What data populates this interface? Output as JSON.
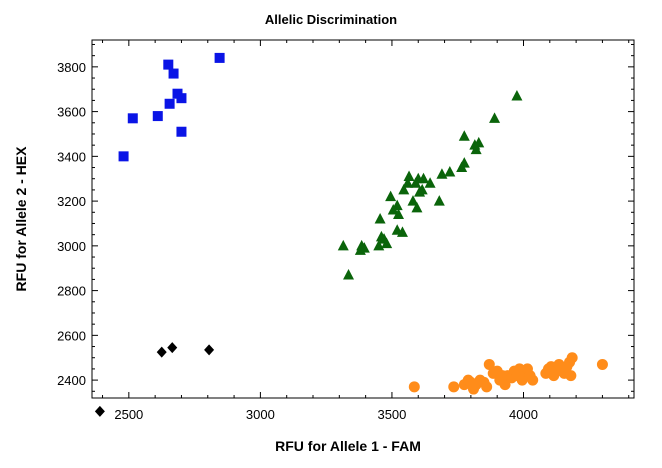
{
  "chart_data": {
    "type": "scatter",
    "title": "Allelic Discrimination",
    "xlabel": "RFU for Allele 1 - FAM",
    "ylabel": "RFU for Allele 2 - HEX",
    "xlim": [
      2360,
      4420
    ],
    "ylim": [
      2320,
      3920
    ],
    "xticks": [
      2500,
      3000,
      3500,
      4000
    ],
    "yticks": [
      2400,
      2600,
      2800,
      3000,
      3200,
      3400,
      3600,
      3800
    ],
    "grid": false,
    "legend": "none",
    "series": [
      {
        "marker": "square",
        "color": "#0a14e6",
        "points": [
          [
            2480,
            3400
          ],
          [
            2515,
            3570
          ],
          [
            2610,
            3580
          ],
          [
            2650,
            3810
          ],
          [
            2670,
            3770
          ],
          [
            2655,
            3635
          ],
          [
            2685,
            3680
          ],
          [
            2700,
            3660
          ],
          [
            2700,
            3510
          ],
          [
            2845,
            3840
          ]
        ]
      },
      {
        "marker": "triangle",
        "color": "#0a640a",
        "points": [
          [
            3315,
            3000
          ],
          [
            3335,
            2870
          ],
          [
            3380,
            2980
          ],
          [
            3385,
            3000
          ],
          [
            3395,
            2990
          ],
          [
            3450,
            3000
          ],
          [
            3460,
            3040
          ],
          [
            3470,
            3030
          ],
          [
            3480,
            3010
          ],
          [
            3455,
            3120
          ],
          [
            3495,
            3220
          ],
          [
            3505,
            3160
          ],
          [
            3520,
            3180
          ],
          [
            3525,
            3140
          ],
          [
            3520,
            3070
          ],
          [
            3540,
            3060
          ],
          [
            3545,
            3250
          ],
          [
            3560,
            3280
          ],
          [
            3565,
            3310
          ],
          [
            3580,
            3200
          ],
          [
            3590,
            3280
          ],
          [
            3600,
            3300
          ],
          [
            3605,
            3240
          ],
          [
            3595,
            3170
          ],
          [
            3615,
            3250
          ],
          [
            3620,
            3300
          ],
          [
            3645,
            3280
          ],
          [
            3680,
            3200
          ],
          [
            3690,
            3320
          ],
          [
            3720,
            3330
          ],
          [
            3765,
            3350
          ],
          [
            3775,
            3370
          ],
          [
            3775,
            3490
          ],
          [
            3815,
            3450
          ],
          [
            3820,
            3430
          ],
          [
            3830,
            3460
          ],
          [
            3890,
            3570
          ],
          [
            3975,
            3670
          ]
        ]
      },
      {
        "marker": "circle",
        "color": "#ff8c1a",
        "points": [
          [
            3585,
            2370
          ],
          [
            3735,
            2370
          ],
          [
            3775,
            2380
          ],
          [
            3790,
            2400
          ],
          [
            3800,
            2390
          ],
          [
            3810,
            2360
          ],
          [
            3820,
            2380
          ],
          [
            3835,
            2400
          ],
          [
            3850,
            2390
          ],
          [
            3860,
            2370
          ],
          [
            3870,
            2470
          ],
          [
            3885,
            2430
          ],
          [
            3900,
            2440
          ],
          [
            3910,
            2400
          ],
          [
            3920,
            2420
          ],
          [
            3930,
            2380
          ],
          [
            3940,
            2420
          ],
          [
            3955,
            2410
          ],
          [
            3965,
            2440
          ],
          [
            3975,
            2420
          ],
          [
            3985,
            2450
          ],
          [
            3995,
            2400
          ],
          [
            4005,
            2440
          ],
          [
            4015,
            2450
          ],
          [
            4025,
            2420
          ],
          [
            4035,
            2400
          ],
          [
            4085,
            2430
          ],
          [
            4095,
            2450
          ],
          [
            4105,
            2460
          ],
          [
            4115,
            2420
          ],
          [
            4125,
            2440
          ],
          [
            4135,
            2470
          ],
          [
            4145,
            2450
          ],
          [
            4155,
            2430
          ],
          [
            4165,
            2460
          ],
          [
            4175,
            2480
          ],
          [
            4180,
            2420
          ],
          [
            4185,
            2500
          ],
          [
            4300,
            2470
          ]
        ]
      },
      {
        "marker": "diamond",
        "color": "#000000",
        "points": [
          [
            2390,
            2260
          ],
          [
            2625,
            2525
          ],
          [
            2665,
            2545
          ],
          [
            2805,
            2535
          ]
        ]
      }
    ]
  }
}
